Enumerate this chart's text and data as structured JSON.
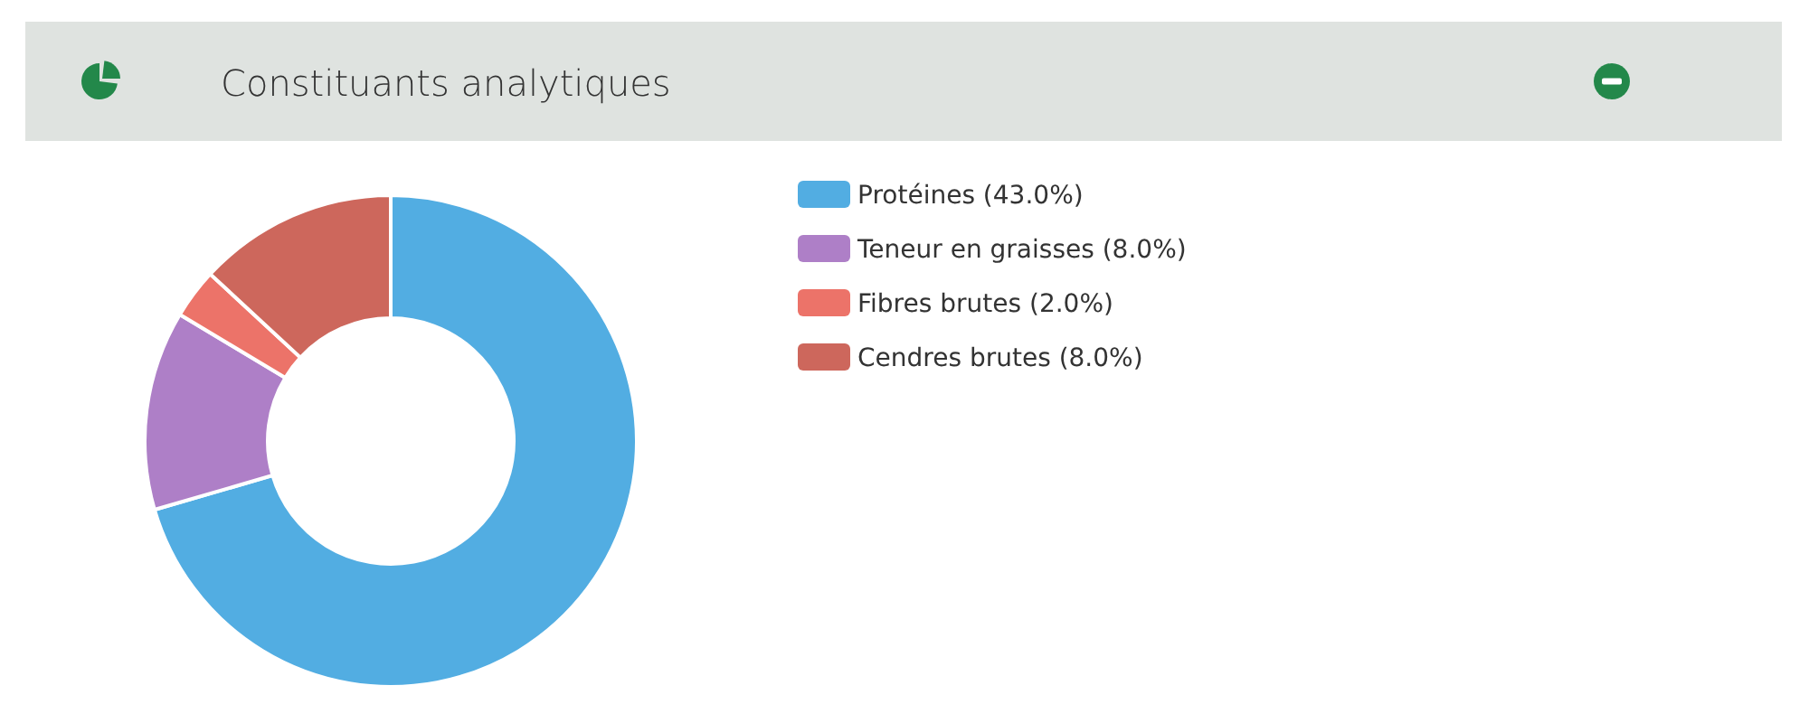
{
  "chart_data": {
    "type": "donut",
    "title": "Constituants analytiques",
    "categories": [
      "Protéines (43.0%)",
      "Teneur en graisses (8.0%)",
      "Fibres brutes (2.0%)",
      "Cendres brutes (8.0%)"
    ],
    "values": [
      43,
      8,
      2,
      8
    ],
    "colors": [
      "#52ade2",
      "#ae7fc7",
      "#ec7369",
      "#cd675c"
    ],
    "legend": "right"
  }
}
